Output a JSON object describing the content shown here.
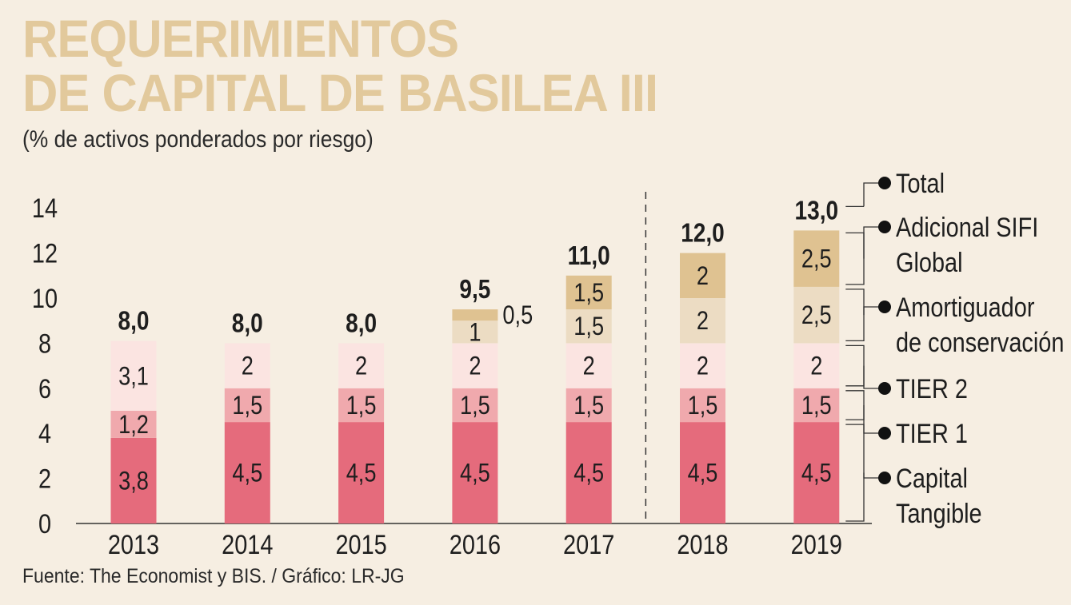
{
  "header": {
    "title_line1": "REQUERIMIENTOS",
    "title_line2": "DE CAPITAL DE BASILEA III",
    "subtitle": "(% de activos ponderados por riesgo)"
  },
  "footer": {
    "source": "Fuente: The Economist y BIS. / Gráfico: LR-JG"
  },
  "colors": {
    "background": "#f6eee2",
    "title": "#e2c99c",
    "capital_tangible": "#e56b7c",
    "tier1": "#f0a9ad",
    "tier2": "#fbe4e1",
    "amortiguador": "#ecdcc3",
    "sifi": "#dfc291",
    "text": "#1e1e1e"
  },
  "chart_data": {
    "type": "bar",
    "stacked": true,
    "title": "REQUERIMIENTOS DE CAPITAL DE BASILEA III",
    "ylabel": "(% de activos ponderados por riesgo)",
    "ylim": [
      0,
      14
    ],
    "yticks": [
      0,
      2,
      4,
      6,
      8,
      10,
      12,
      14
    ],
    "categories": [
      "2013",
      "2014",
      "2015",
      "2016",
      "2017",
      "2018",
      "2019"
    ],
    "series": [
      {
        "name": "Capital Tangible",
        "values": [
          3.8,
          4.5,
          4.5,
          4.5,
          4.5,
          4.5,
          4.5
        ],
        "labels": [
          "3,8",
          "4,5",
          "4,5",
          "4,5",
          "4,5",
          "4,5",
          "4,5"
        ]
      },
      {
        "name": "TIER 1",
        "values": [
          1.2,
          1.5,
          1.5,
          1.5,
          1.5,
          1.5,
          1.5
        ],
        "labels": [
          "1,2",
          "1,5",
          "1,5",
          "1,5",
          "1,5",
          "1,5",
          "1,5"
        ]
      },
      {
        "name": "TIER 2",
        "values": [
          3.1,
          2,
          2,
          2,
          2,
          2,
          2
        ],
        "labels": [
          "3,1",
          "2",
          "2",
          "2",
          "2",
          "2",
          "2"
        ]
      },
      {
        "name": "Amortiguador de conservación",
        "values": [
          0,
          0,
          0,
          1,
          1.5,
          2,
          2.5
        ],
        "labels": [
          "",
          "",
          "",
          "1",
          "1,5",
          "2",
          "2,5"
        ]
      },
      {
        "name": "Adicional SIFI Global",
        "values": [
          0,
          0,
          0,
          0.5,
          1.5,
          2,
          2.5
        ],
        "labels": [
          "",
          "",
          "",
          "0,5",
          "1,5",
          "2",
          "2,5"
        ]
      }
    ],
    "totals": [
      "8,0",
      "8,0",
      "8,0",
      "9,5",
      "11,0",
      "12,0",
      "13,0"
    ],
    "legend": [
      {
        "lines": [
          "Total"
        ]
      },
      {
        "lines": [
          "Adicional SIFI",
          "Global"
        ]
      },
      {
        "lines": [
          "Amortiguador",
          "de conservación"
        ]
      },
      {
        "lines": [
          "TIER 2"
        ]
      },
      {
        "lines": [
          "TIER 1"
        ]
      },
      {
        "lines": [
          "Capital",
          "Tangible"
        ]
      }
    ],
    "divider_after": "2017",
    "legend_position": "right"
  }
}
